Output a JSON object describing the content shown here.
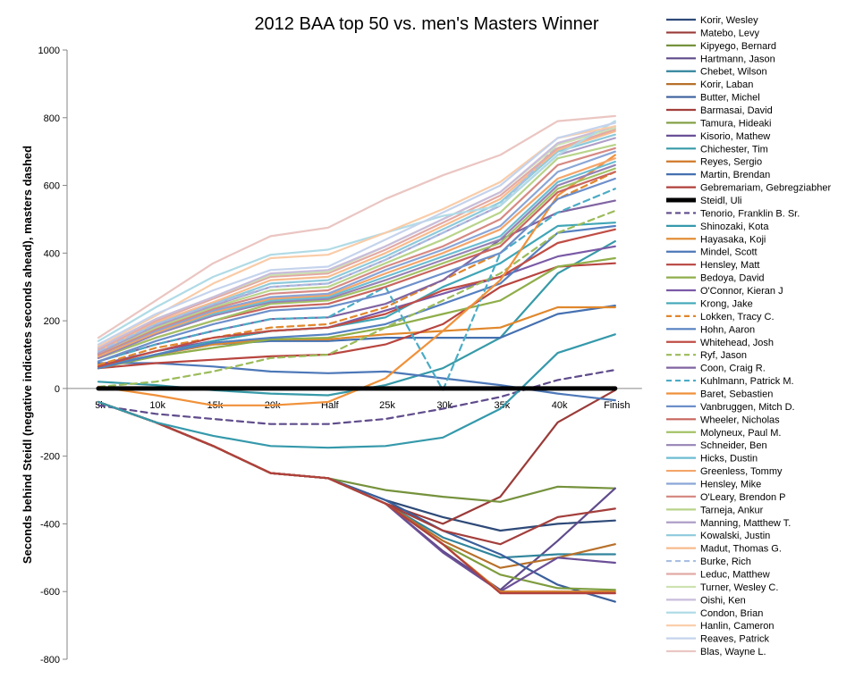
{
  "chart_data": {
    "type": "line",
    "title": "2012 BAA top 50 vs. men's Masters Winner",
    "ylabel": "Seconds behind Steidl (negative indicates seconds ahead), masters dashed",
    "xlabel": "",
    "categories": [
      "5k",
      "10k",
      "15k",
      "20k",
      "Half",
      "25k",
      "30k",
      "35k",
      "40k",
      "Finish"
    ],
    "ylim": [
      -800,
      1000
    ],
    "yticks": [
      -800,
      -600,
      -400,
      -200,
      0,
      200,
      400,
      600,
      800,
      1000
    ],
    "grid": false,
    "legend": "right",
    "series": [
      {
        "name": "Korir, Wesley",
        "color": "#2e4a78",
        "dashed": false,
        "values": [
          -40,
          -100,
          -170,
          -250,
          -265,
          -330,
          -380,
          -420,
          -400,
          -390
        ]
      },
      {
        "name": "Matebo, Levy",
        "color": "#9a3b38",
        "dashed": false,
        "values": [
          -40,
          -100,
          -170,
          -250,
          -265,
          -340,
          -400,
          -320,
          -100,
          -5
        ]
      },
      {
        "name": "Kipyego, Bernard",
        "color": "#75923c",
        "dashed": false,
        "values": [
          -40,
          -100,
          -170,
          -250,
          -265,
          -300,
          -320,
          -335,
          -290,
          -295
        ]
      },
      {
        "name": "Hartmann, Jason",
        "color": "#5f4b8b",
        "dashed": false,
        "values": [
          -40,
          -100,
          -170,
          -250,
          -265,
          -340,
          -480,
          -595,
          -450,
          -295
        ]
      },
      {
        "name": "Chebet, Wilson",
        "color": "#31859c",
        "dashed": false,
        "values": [
          -40,
          -100,
          -170,
          -250,
          -265,
          -340,
          -440,
          -500,
          -490,
          -490
        ]
      },
      {
        "name": "Korir, Laban",
        "color": "#b7702a",
        "dashed": false,
        "values": [
          -40,
          -100,
          -170,
          -250,
          -265,
          -340,
          -450,
          -530,
          -500,
          -460
        ]
      },
      {
        "name": "Butter, Michel",
        "color": "#3a5f9c",
        "dashed": false,
        "values": [
          -40,
          -100,
          -170,
          -250,
          -265,
          -330,
          -420,
          -490,
          -580,
          -630
        ]
      },
      {
        "name": "Barmasai, David",
        "color": "#a33f3c",
        "dashed": false,
        "values": [
          -40,
          -100,
          -170,
          -250,
          -265,
          -340,
          -420,
          -460,
          -380,
          -355
        ]
      },
      {
        "name": "Tamura, Hideaki",
        "color": "#7e9c3e",
        "dashed": false,
        "values": [
          -40,
          -100,
          -170,
          -250,
          -265,
          -340,
          -460,
          -550,
          -590,
          -595
        ]
      },
      {
        "name": "Kisorio, Mathew",
        "color": "#6a4f96",
        "dashed": false,
        "values": [
          -40,
          -100,
          -170,
          -250,
          -265,
          -340,
          -485,
          -600,
          -500,
          -515
        ]
      },
      {
        "name": "Chichester, Tim",
        "color": "#379aa8",
        "dashed": false,
        "values": [
          20,
          10,
          -5,
          -15,
          -20,
          10,
          60,
          150,
          340,
          435
        ]
      },
      {
        "name": "Reyes, Sergio",
        "color": "#d07a2a",
        "dashed": false,
        "values": [
          -40,
          -100,
          -170,
          -250,
          -265,
          -340,
          -460,
          -600,
          -600,
          -600
        ]
      },
      {
        "name": "Martin, Brendan",
        "color": "#4470b0",
        "dashed": false,
        "values": [
          60,
          100,
          130,
          140,
          140,
          150,
          150,
          150,
          220,
          245
        ]
      },
      {
        "name": "Gebremariam, Gebregziabher",
        "color": "#b0403c",
        "dashed": false,
        "values": [
          -40,
          -100,
          -170,
          -250,
          -265,
          -340,
          -460,
          -605,
          -605,
          -605
        ]
      },
      {
        "name": "Steidl, Uli",
        "color": "#000000",
        "dashed": false,
        "width": 5,
        "values": [
          0,
          0,
          0,
          0,
          0,
          0,
          0,
          0,
          0,
          0
        ]
      },
      {
        "name": "Tenorio, Franklin B. Sr.",
        "color": "#5f4b8b",
        "dashed": true,
        "values": [
          -50,
          -75,
          -90,
          -105,
          -105,
          -90,
          -60,
          -25,
          25,
          55
        ]
      },
      {
        "name": "Shinozaki, Kota",
        "color": "#3599ab",
        "dashed": false,
        "values": [
          -40,
          -100,
          -140,
          -170,
          -175,
          -170,
          -145,
          -60,
          105,
          160
        ]
      },
      {
        "name": "Hayasaka, Koji",
        "color": "#e0872c",
        "dashed": false,
        "values": [
          60,
          100,
          130,
          145,
          145,
          160,
          170,
          180,
          240,
          240
        ]
      },
      {
        "name": "Mindel, Scott",
        "color": "#4d78b8",
        "dashed": false,
        "values": [
          75,
          75,
          65,
          50,
          45,
          50,
          30,
          10,
          -15,
          -35
        ]
      },
      {
        "name": "Hensley, Matt",
        "color": "#b8453f",
        "dashed": false,
        "values": [
          60,
          75,
          85,
          95,
          100,
          130,
          190,
          300,
          360,
          370
        ]
      },
      {
        "name": "Bedoya, David",
        "color": "#8fae4a",
        "dashed": false,
        "values": [
          60,
          95,
          120,
          145,
          150,
          180,
          220,
          260,
          360,
          385
        ]
      },
      {
        "name": "O'Connor, Kieran J",
        "color": "#7a5aa6",
        "dashed": false,
        "values": [
          70,
          110,
          140,
          170,
          180,
          230,
          280,
          330,
          390,
          420
        ]
      },
      {
        "name": "Krong, Jake",
        "color": "#40a6b6",
        "dashed": false,
        "values": [
          65,
          100,
          140,
          170,
          180,
          210,
          300,
          370,
          480,
          490
        ]
      },
      {
        "name": "Lokken, Tracy C.",
        "color": "#e0872c",
        "dashed": true,
        "values": [
          70,
          120,
          150,
          180,
          190,
          240,
          320,
          400,
          560,
          640
        ]
      },
      {
        "name": "Hohn, Aaron",
        "color": "#5580c0",
        "dashed": false,
        "values": [
          60,
          100,
          135,
          150,
          160,
          190,
          250,
          310,
          460,
          480
        ]
      },
      {
        "name": "Whitehead, Josh",
        "color": "#c04d45",
        "dashed": false,
        "values": [
          65,
          110,
          150,
          170,
          180,
          220,
          290,
          330,
          430,
          470
        ]
      },
      {
        "name": "Ryf, Jason",
        "color": "#9bbb59",
        "dashed": true,
        "values": [
          5,
          20,
          50,
          90,
          100,
          180,
          260,
          340,
          460,
          525
        ]
      },
      {
        "name": "Coon, Craig R.",
        "color": "#8064a2",
        "dashed": false,
        "values": [
          80,
          130,
          170,
          205,
          210,
          250,
          320,
          440,
          520,
          555
        ]
      },
      {
        "name": "Kuhlmann, Patrick M.",
        "color": "#4bacc6",
        "dashed": true,
        "values": [
          80,
          130,
          170,
          205,
          210,
          300,
          -5,
          400,
          520,
          590
        ]
      },
      {
        "name": "Baret, Sebastien",
        "color": "#f0913a",
        "dashed": false,
        "values": [
          5,
          -20,
          -50,
          -50,
          -40,
          30,
          170,
          320,
          570,
          690
        ]
      },
      {
        "name": "Vanbruggen, Mitch D.",
        "color": "#6d8fca",
        "dashed": false,
        "values": [
          80,
          140,
          190,
          230,
          240,
          280,
          340,
          400,
          560,
          620
        ]
      },
      {
        "name": "Wheeler, Nicholas",
        "color": "#c9655e",
        "dashed": false,
        "values": [
          90,
          150,
          200,
          240,
          250,
          300,
          360,
          420,
          580,
          640
        ]
      },
      {
        "name": "Molyneux, Paul M.",
        "color": "#a3c266",
        "dashed": false,
        "values": [
          90,
          150,
          200,
          250,
          260,
          310,
          370,
          430,
          590,
          650
        ]
      },
      {
        "name": "Schneider, Ben",
        "color": "#9683b5",
        "dashed": false,
        "values": [
          90,
          160,
          215,
          255,
          265,
          320,
          380,
          440,
          600,
          660
        ]
      },
      {
        "name": "Hicks, Dustin",
        "color": "#6cbdd2",
        "dashed": false,
        "values": [
          95,
          165,
          220,
          260,
          270,
          330,
          390,
          450,
          610,
          670
        ]
      },
      {
        "name": "Greenless, Tommy",
        "color": "#f4a56a",
        "dashed": false,
        "values": [
          95,
          165,
          225,
          265,
          275,
          340,
          400,
          470,
          620,
          680
        ]
      },
      {
        "name": "Hensley, Mike",
        "color": "#8aa6d6",
        "dashed": false,
        "values": [
          100,
          170,
          230,
          270,
          280,
          350,
          410,
          480,
          640,
          700
        ]
      },
      {
        "name": "O'Leary, Brendon P",
        "color": "#d68a84",
        "dashed": false,
        "values": [
          100,
          175,
          235,
          280,
          290,
          360,
          420,
          500,
          660,
          710
        ]
      },
      {
        "name": "Tarneja, Ankur",
        "color": "#b8d48a",
        "dashed": false,
        "values": [
          105,
          180,
          240,
          290,
          300,
          370,
          440,
          520,
          680,
          720
        ]
      },
      {
        "name": "Manning, Matthew T.",
        "color": "#ae9ec8",
        "dashed": false,
        "values": [
          105,
          185,
          245,
          300,
          310,
          380,
          460,
          540,
          690,
          740
        ]
      },
      {
        "name": "Kowalski, Justin",
        "color": "#8dcadb",
        "dashed": false,
        "values": [
          110,
          190,
          250,
          310,
          320,
          390,
          470,
          550,
          700,
          750
        ]
      },
      {
        "name": "Madut, Thomas G.",
        "color": "#f7bb8e",
        "dashed": false,
        "values": [
          110,
          195,
          255,
          320,
          330,
          400,
          480,
          560,
          705,
          760
        ]
      },
      {
        "name": "Burke, Rich",
        "color": "#a9bfe2",
        "dashed": true,
        "values": [
          110,
          190,
          250,
          300,
          310,
          380,
          460,
          540,
          720,
          770
        ]
      },
      {
        "name": "Leduc, Matthew",
        "color": "#e2aaa6",
        "dashed": false,
        "values": [
          115,
          200,
          265,
          330,
          340,
          410,
          490,
          570,
          710,
          765
        ]
      },
      {
        "name": "Turner, Wesley C.",
        "color": "#cde2b0",
        "dashed": false,
        "values": [
          120,
          205,
          270,
          335,
          345,
          420,
          500,
          580,
          720,
          770
        ]
      },
      {
        "name": "Oishi, Ken",
        "color": "#c9bddb",
        "dashed": false,
        "values": [
          120,
          205,
          270,
          340,
          350,
          420,
          500,
          580,
          725,
          775
        ]
      },
      {
        "name": "Condon, Brian",
        "color": "#b0dbe6",
        "dashed": false,
        "values": [
          140,
          240,
          330,
          395,
          410,
          460,
          510,
          540,
          690,
          790
        ]
      },
      {
        "name": "Hanlin, Cameron",
        "color": "#f9cca8",
        "dashed": false,
        "values": [
          125,
          215,
          310,
          385,
          395,
          460,
          530,
          610,
          740,
          775
        ]
      },
      {
        "name": "Reaves, Patrick",
        "color": "#c5d3ec",
        "dashed": false,
        "values": [
          130,
          220,
          290,
          350,
          360,
          440,
          520,
          600,
          740,
          785
        ]
      },
      {
        "name": "Blas, Wayne L.",
        "color": "#eac6c2",
        "dashed": false,
        "values": [
          150,
          260,
          370,
          450,
          475,
          560,
          630,
          690,
          790,
          805
        ]
      }
    ]
  }
}
